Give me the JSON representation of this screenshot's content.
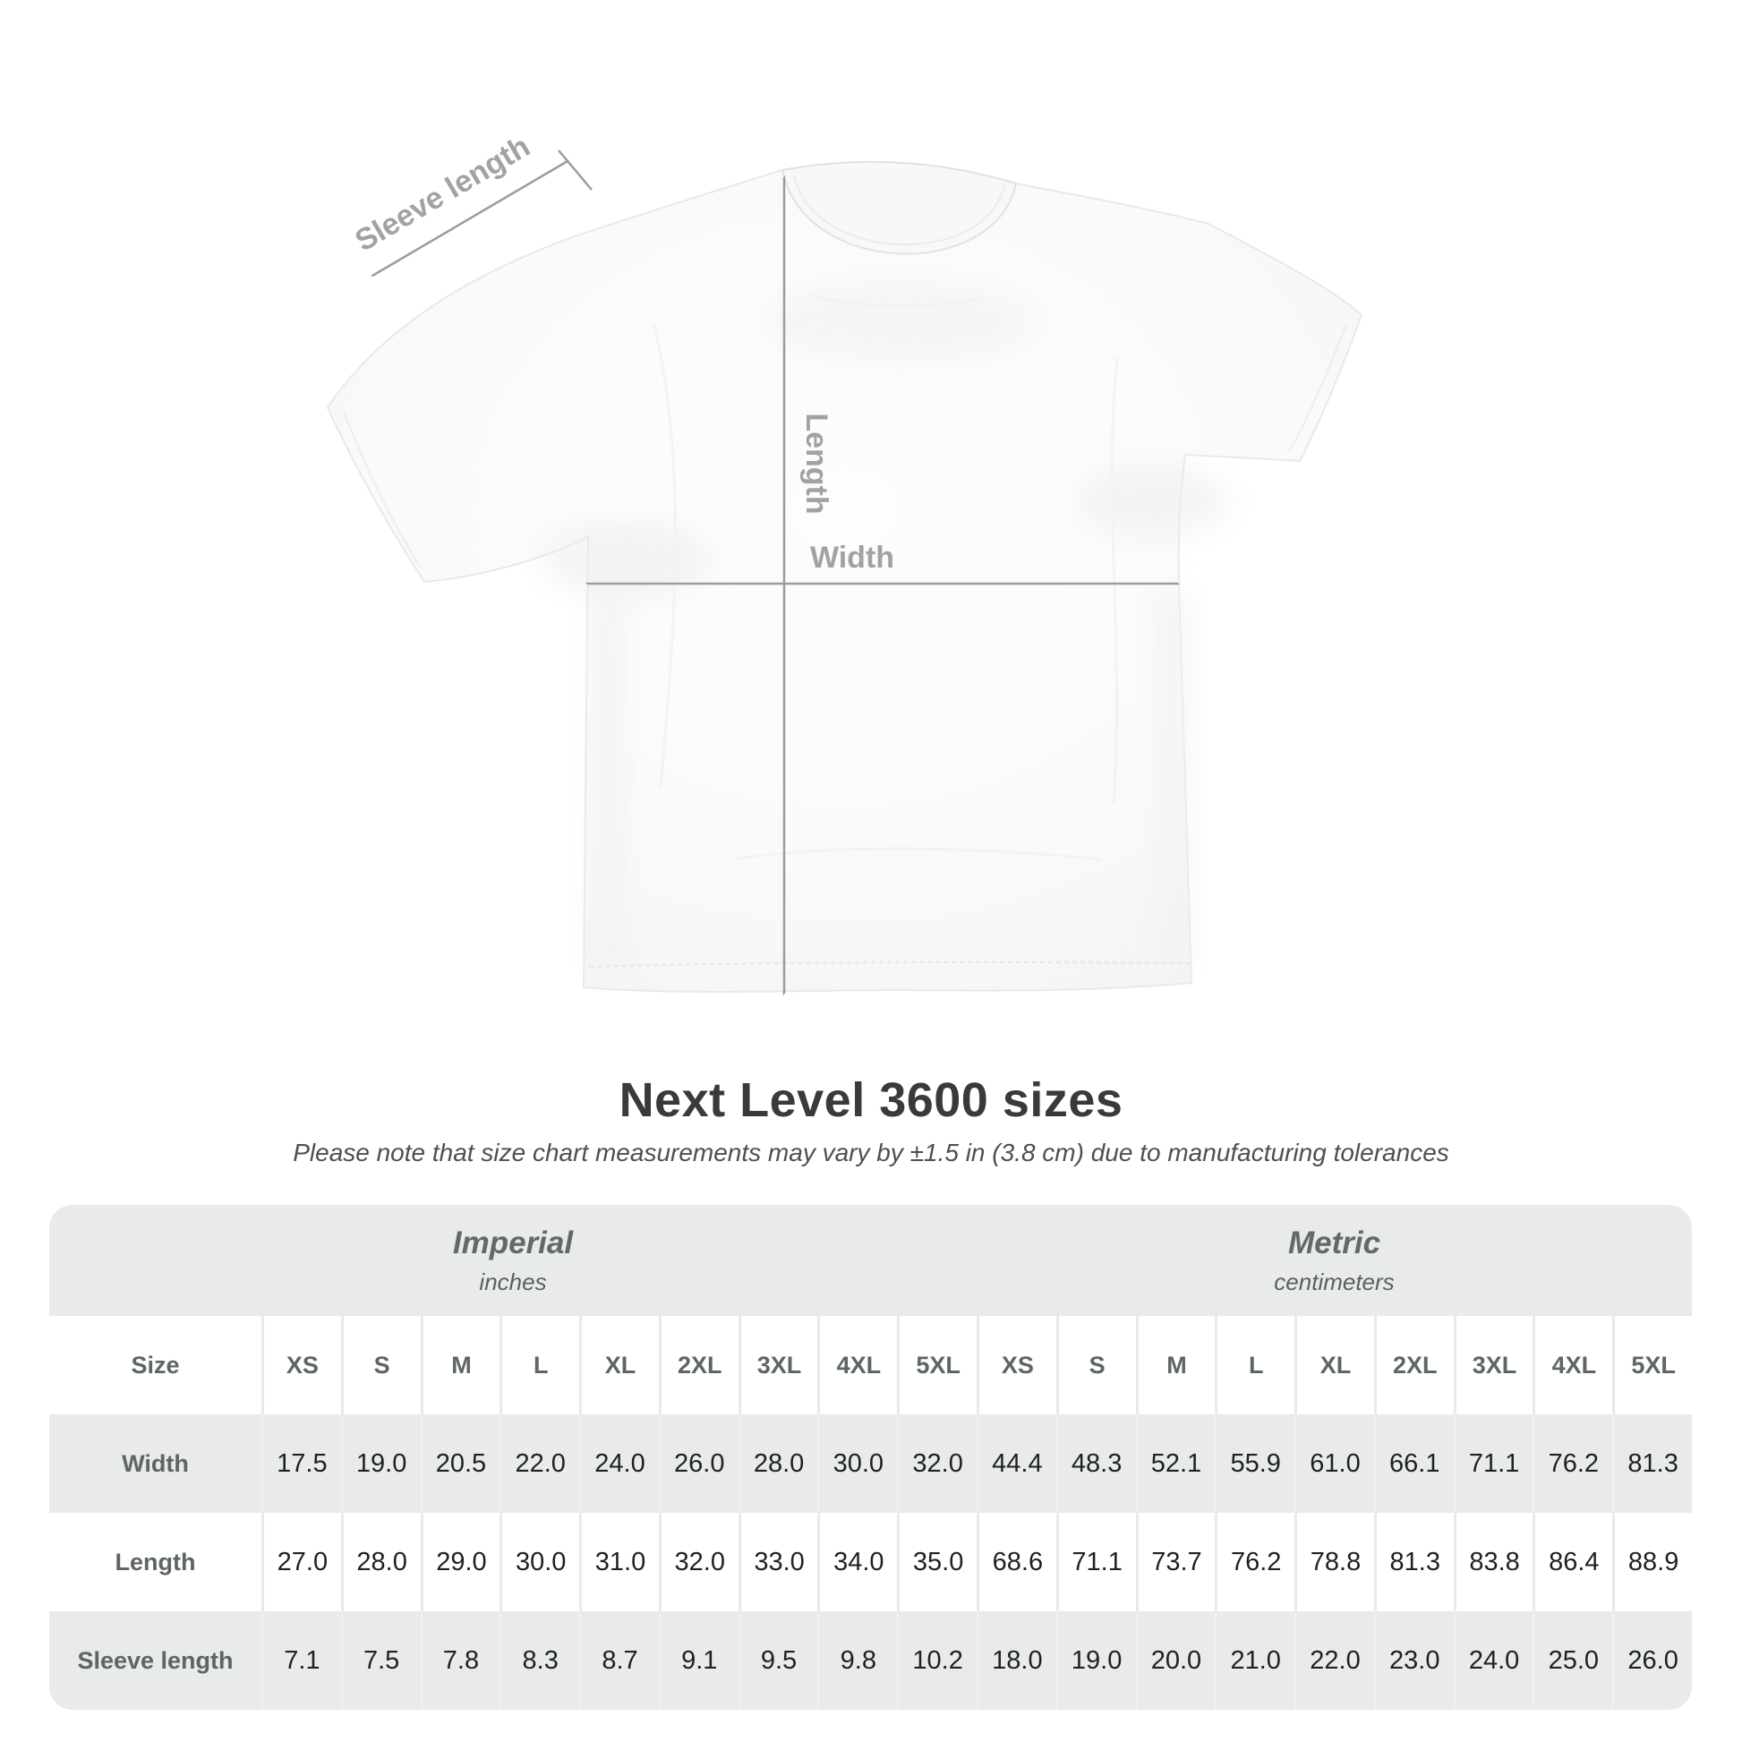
{
  "diagram": {
    "labels": {
      "sleeve_length": "Sleeve length",
      "length": "Length",
      "width": "Width"
    }
  },
  "title": "Next Level 3600 sizes",
  "subtitle": "Please note that size chart measurements may vary by ±1.5 in (3.8 cm) due to manufacturing tolerances",
  "table": {
    "unit_groups": [
      {
        "name": "Imperial",
        "unit": "inches"
      },
      {
        "name": "Metric",
        "unit": "centimeters"
      }
    ],
    "size_header_label": "Size",
    "sizes": [
      "XS",
      "S",
      "M",
      "L",
      "XL",
      "2XL",
      "3XL",
      "4XL",
      "5XL"
    ],
    "rows": [
      {
        "label": "Width",
        "imperial": [
          "17.5",
          "19.0",
          "20.5",
          "22.0",
          "24.0",
          "26.0",
          "28.0",
          "30.0",
          "32.0"
        ],
        "metric": [
          "44.4",
          "48.3",
          "52.1",
          "55.9",
          "61.0",
          "66.1",
          "71.1",
          "76.2",
          "81.3"
        ]
      },
      {
        "label": "Length",
        "imperial": [
          "27.0",
          "28.0",
          "29.0",
          "30.0",
          "31.0",
          "32.0",
          "33.0",
          "34.0",
          "35.0"
        ],
        "metric": [
          "68.6",
          "71.1",
          "73.7",
          "76.2",
          "78.8",
          "81.3",
          "83.8",
          "86.4",
          "88.9"
        ]
      },
      {
        "label": "Sleeve length",
        "imperial": [
          "7.1",
          "7.5",
          "7.8",
          "8.3",
          "8.7",
          "9.1",
          "9.5",
          "9.8",
          "10.2"
        ],
        "metric": [
          "18.0",
          "19.0",
          "20.0",
          "21.0",
          "22.0",
          "23.0",
          "24.0",
          "25.0",
          "26.0"
        ]
      }
    ]
  },
  "colors": {
    "background": "#ffffff",
    "table_panel": "#e9eaea",
    "measurement_gray": "#9c9c9c",
    "diagram_label_gray": "#a2a2a2",
    "title_text": "#3a3a3a",
    "value_text": "#1e2123",
    "header_text": "#5d6566"
  }
}
